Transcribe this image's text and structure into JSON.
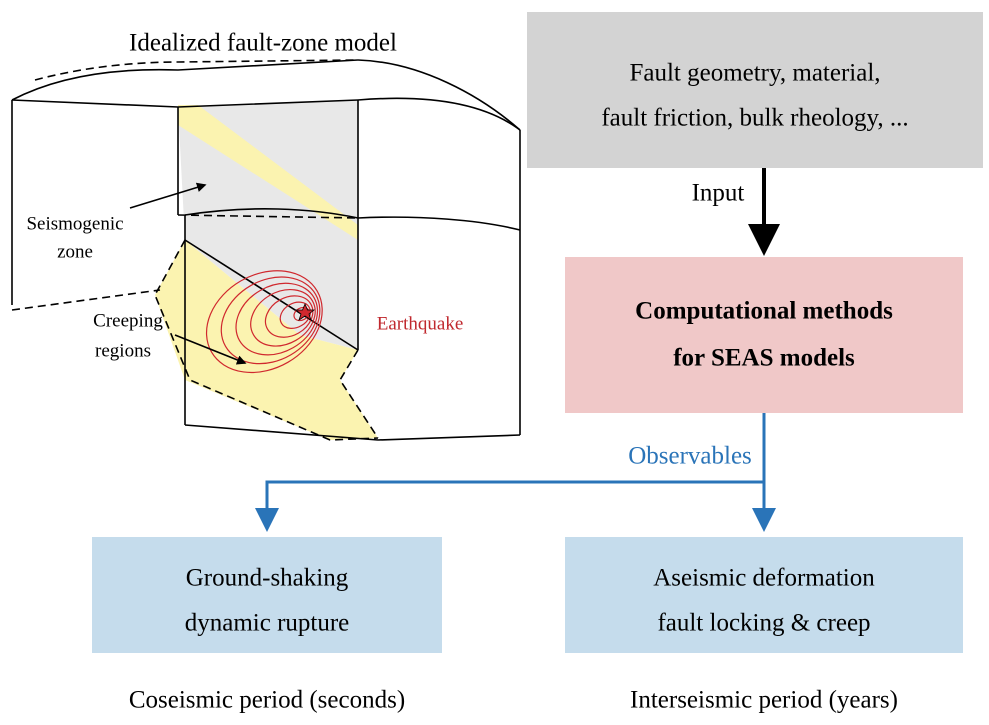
{
  "model": {
    "title": "Idealized fault-zone model",
    "seismogenic_zone": [
      "Seismogenic",
      "zone"
    ],
    "creeping_regions": [
      "Creeping",
      "regions"
    ],
    "earthquake": "Earthquake"
  },
  "input_box": {
    "lines": [
      "Fault geometry, material,",
      "fault friction, bulk rheology, ..."
    ]
  },
  "input_label": "Input",
  "methods_box": {
    "lines": [
      "Computational methods",
      "for SEAS models"
    ]
  },
  "observables_label": "Observables",
  "outputs": [
    {
      "lines": [
        "Ground-shaking",
        "dynamic rupture"
      ],
      "caption": "Coseismic period (seconds)"
    },
    {
      "lines": [
        "Aseismic deformation",
        "fault locking & creep"
      ],
      "caption": "Interseismic period (years)"
    }
  ]
}
